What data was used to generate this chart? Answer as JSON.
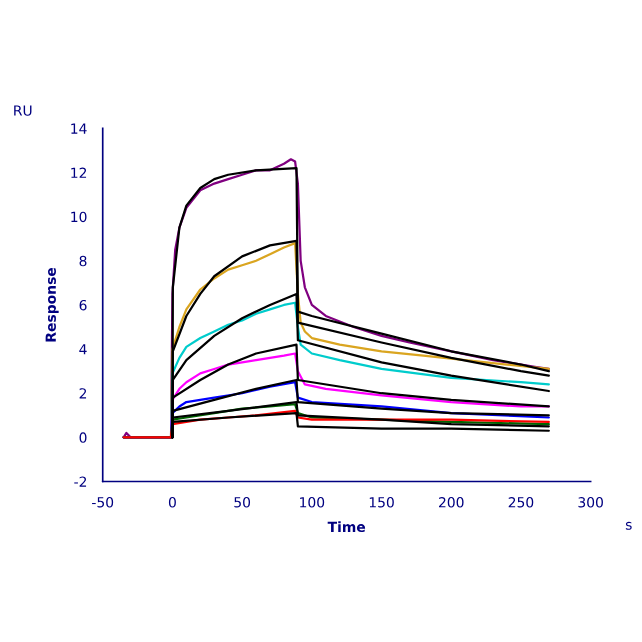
{
  "chart_data": {
    "type": "line",
    "xlabel": "Time",
    "ylabel": "Response",
    "annotations": [
      "RU",
      "s"
    ],
    "xlim": [
      -50,
      300
    ],
    "xticks": [
      -50,
      0,
      50,
      100,
      150,
      200,
      250,
      300
    ],
    "ylim": [
      -2,
      14
    ],
    "yticks": [
      -2,
      0,
      2,
      4,
      6,
      8,
      10,
      12,
      14
    ],
    "grid": false,
    "marker": "none",
    "line_style": "solid",
    "series": [
      {
        "color": "#800080",
        "x": [
          -35,
          -33,
          -30,
          -1,
          0,
          2,
          5,
          10,
          20,
          30,
          40,
          50,
          60,
          70,
          80,
          85,
          88,
          90,
          92,
          95,
          100,
          110,
          130,
          150,
          170,
          200,
          230,
          260,
          270
        ],
        "values": [
          0,
          0.2,
          0,
          0,
          6.5,
          8.5,
          9.5,
          10.4,
          11.2,
          11.5,
          11.7,
          11.9,
          12.1,
          12.1,
          12.4,
          12.6,
          12.5,
          11.5,
          8,
          6.8,
          6.0,
          5.5,
          5.0,
          4.6,
          4.3,
          3.9,
          3.5,
          3.2,
          3.1
        ]
      },
      {
        "color": "#daa520",
        "x": [
          -35,
          -1,
          0,
          5,
          10,
          20,
          30,
          40,
          50,
          60,
          70,
          80,
          88,
          90,
          92,
          95,
          100,
          120,
          150,
          180,
          210,
          240,
          270
        ],
        "values": [
          0,
          0,
          4.0,
          5.0,
          5.8,
          6.7,
          7.2,
          7.6,
          7.8,
          8.0,
          8.3,
          8.6,
          8.8,
          6.5,
          5.2,
          4.8,
          4.5,
          4.2,
          3.9,
          3.7,
          3.5,
          3.3,
          3.1
        ]
      },
      {
        "color": "#00cccc",
        "x": [
          -35,
          -1,
          0,
          5,
          10,
          20,
          30,
          40,
          50,
          60,
          70,
          80,
          88,
          90,
          92,
          100,
          120,
          150,
          200,
          250,
          270
        ],
        "values": [
          0,
          0,
          2.9,
          3.6,
          4.1,
          4.5,
          4.8,
          5.1,
          5.3,
          5.6,
          5.8,
          6.0,
          6.1,
          5.0,
          4.2,
          3.8,
          3.5,
          3.1,
          2.7,
          2.5,
          2.4
        ]
      },
      {
        "color": "#ff00ff",
        "x": [
          -35,
          -1,
          0,
          5,
          10,
          20,
          30,
          40,
          50,
          60,
          70,
          80,
          88,
          90,
          95,
          110,
          150,
          200,
          250,
          270
        ],
        "values": [
          0,
          0,
          1.7,
          2.2,
          2.5,
          2.9,
          3.1,
          3.3,
          3.4,
          3.5,
          3.6,
          3.7,
          3.8,
          3.0,
          2.4,
          2.2,
          1.9,
          1.6,
          1.4,
          1.4
        ]
      },
      {
        "color": "#0000ff",
        "x": [
          -35,
          -1,
          0,
          5,
          10,
          30,
          50,
          70,
          88,
          90,
          100,
          150,
          200,
          270
        ],
        "values": [
          0,
          0,
          1.1,
          1.4,
          1.6,
          1.8,
          2.0,
          2.3,
          2.5,
          1.8,
          1.6,
          1.4,
          1.1,
          0.9
        ]
      },
      {
        "color": "#006400",
        "x": [
          -35,
          -1,
          0,
          10,
          30,
          50,
          70,
          88,
          90,
          100,
          150,
          200,
          270
        ],
        "values": [
          0,
          0,
          0.8,
          0.9,
          1.1,
          1.3,
          1.4,
          1.5,
          1.1,
          0.9,
          0.8,
          0.7,
          0.6
        ]
      },
      {
        "color": "#ff0000",
        "x": [
          -35,
          -1,
          0,
          20,
          40,
          60,
          88,
          90,
          100,
          150,
          200,
          270
        ],
        "values": [
          0,
          0,
          0.6,
          0.8,
          0.9,
          1.0,
          1.2,
          0.9,
          0.8,
          0.8,
          0.8,
          0.7
        ]
      },
      {
        "color": "#000000",
        "x": [
          0,
          0.3,
          5,
          10,
          20,
          30,
          40,
          60,
          89,
          90,
          100,
          150,
          200,
          250,
          270
        ],
        "values": [
          0,
          6.8,
          9.5,
          10.5,
          11.3,
          11.7,
          11.9,
          12.1,
          12.2,
          5.7,
          5.5,
          4.7,
          3.9,
          3.3,
          3.0
        ]
      },
      {
        "color": "#000000",
        "x": [
          0,
          0.3,
          10,
          20,
          30,
          50,
          70,
          89,
          90,
          150,
          200,
          250,
          270
        ],
        "values": [
          0,
          3.9,
          5.5,
          6.5,
          7.3,
          8.2,
          8.7,
          8.9,
          5.2,
          4.3,
          3.6,
          3.0,
          2.8
        ]
      },
      {
        "color": "#000000",
        "x": [
          0,
          0.3,
          10,
          30,
          50,
          70,
          89,
          90,
          150,
          200,
          270
        ],
        "values": [
          0,
          2.6,
          3.5,
          4.6,
          5.4,
          6.0,
          6.5,
          4.4,
          3.4,
          2.8,
          2.1
        ]
      },
      {
        "color": "#000000",
        "x": [
          0,
          0.3,
          20,
          40,
          60,
          89,
          90,
          150,
          200,
          270
        ],
        "values": [
          0,
          1.8,
          2.6,
          3.3,
          3.8,
          4.2,
          2.6,
          2.0,
          1.7,
          1.4
        ]
      },
      {
        "color": "#000000",
        "x": [
          0,
          0.3,
          30,
          60,
          89,
          90,
          150,
          200,
          270
        ],
        "values": [
          0,
          1.2,
          1.7,
          2.2,
          2.6,
          1.6,
          1.3,
          1.1,
          1.0
        ]
      },
      {
        "color": "#000000",
        "x": [
          0,
          0.3,
          40,
          89,
          90,
          150,
          200,
          270
        ],
        "values": [
          0,
          0.9,
          1.2,
          1.6,
          1.0,
          0.8,
          0.6,
          0.5
        ]
      },
      {
        "color": "#000000",
        "x": [
          0,
          0.3,
          40,
          89,
          90,
          150,
          200,
          270
        ],
        "values": [
          0,
          0.7,
          0.9,
          1.1,
          0.5,
          0.4,
          0.4,
          0.3
        ]
      }
    ]
  }
}
